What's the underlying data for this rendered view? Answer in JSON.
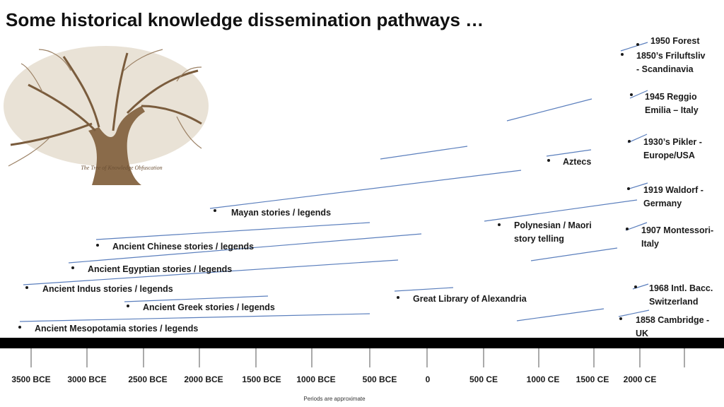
{
  "title": "Some historical knowledge dissemination pathways …",
  "tree_caption": "The Tree of Knowledge Obfuscation",
  "labels": [
    {
      "lines": [
        "1950 Forest"
      ]
    },
    {
      "lines": [
        "1850’s Friluftsliv",
        "- Scandinavia"
      ]
    },
    {
      "lines": [
        "1945 Reggio",
        "Emilia – Italy"
      ]
    },
    {
      "lines": [
        "1930’s Pikler -",
        "Europe/USA"
      ]
    },
    {
      "lines": [
        "Aztecs"
      ]
    },
    {
      "lines": [
        "1919 Waldorf -",
        "Germany"
      ]
    },
    {
      "lines": [
        "Mayan stories /  legends"
      ]
    },
    {
      "lines": [
        "Polynesian / Maori",
        "story telling"
      ]
    },
    {
      "lines": [
        "1907 Montessori-",
        "Italy"
      ]
    },
    {
      "lines": [
        "Ancient Chinese stories / legends"
      ]
    },
    {
      "lines": [
        "Ancient Egyptian stories / legends"
      ]
    },
    {
      "lines": [
        "Ancient Indus stories / legends"
      ]
    },
    {
      "lines": [
        "1968 Intl. Bacc.",
        "Switzerland"
      ]
    },
    {
      "lines": [
        "Great Library of Alexandria"
      ]
    },
    {
      "lines": [
        "Ancient Greek stories / legends"
      ]
    },
    {
      "lines": [
        "1858 Cambridge -",
        "UK"
      ]
    },
    {
      "lines": [
        "Ancient Mesopotamia stories / legends"
      ]
    }
  ],
  "timeline": {
    "ticks": [
      "3500 BCE",
      "3000 BCE",
      "2500 BCE",
      "2000 BCE",
      "1500 BCE",
      "1000 BCE",
      "500 BCE",
      "0",
      "500 CE",
      "1000 CE",
      "1500 CE",
      "2000 CE"
    ]
  },
  "note": "Periods are approximate"
}
